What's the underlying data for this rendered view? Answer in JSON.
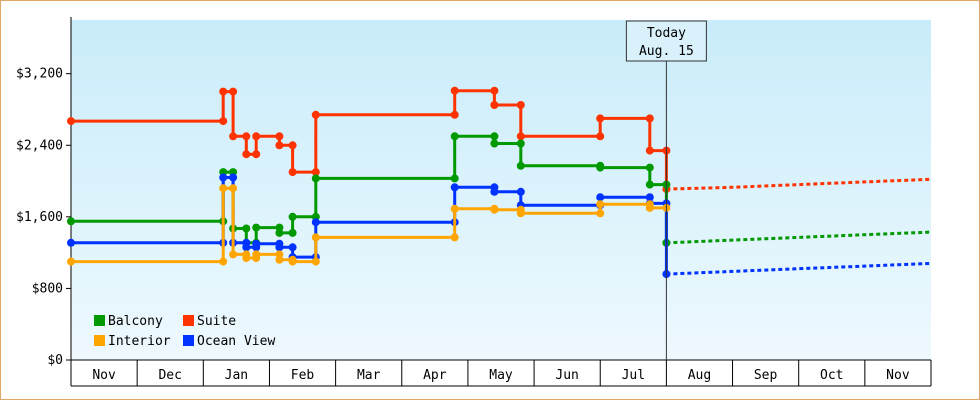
{
  "chart_data": {
    "type": "line",
    "title": "",
    "xlabel": "",
    "ylabel": "",
    "y_ticks": [
      "$0",
      "$800",
      "$1,600",
      "$2,400",
      "$3,200"
    ],
    "ylim": [
      0,
      3800
    ],
    "x_ticks": [
      "Nov",
      "Dec",
      "Jan",
      "Feb",
      "Mar",
      "Apr",
      "May",
      "Jun",
      "Jul",
      "Aug",
      "Sep",
      "Oct",
      "Nov"
    ],
    "today_label_line1": "Today",
    "today_label_line2": "Aug. 15",
    "today_x": 9.0,
    "legend_position": "bottom-left",
    "grid": false,
    "series": [
      {
        "name": "Suite",
        "color": "#ff3300",
        "points": [
          [
            0.0,
            2670
          ],
          [
            2.3,
            2670
          ],
          [
            2.3,
            3000
          ],
          [
            2.45,
            3000
          ],
          [
            2.45,
            2500
          ],
          [
            2.65,
            2500
          ],
          [
            2.65,
            2300
          ],
          [
            2.8,
            2300
          ],
          [
            2.8,
            2500
          ],
          [
            3.15,
            2500
          ],
          [
            3.15,
            2400
          ],
          [
            3.35,
            2400
          ],
          [
            3.35,
            2100
          ],
          [
            3.7,
            2100
          ],
          [
            3.7,
            2740
          ],
          [
            5.8,
            2740
          ],
          [
            5.8,
            3010
          ],
          [
            6.4,
            3010
          ],
          [
            6.4,
            2850
          ],
          [
            6.8,
            2850
          ],
          [
            6.8,
            2500
          ],
          [
            8.0,
            2500
          ],
          [
            8.0,
            2700
          ],
          [
            8.75,
            2700
          ],
          [
            8.75,
            2340
          ],
          [
            9.0,
            2340
          ],
          [
            9.0,
            2340
          ],
          [
            9.0,
            1910
          ],
          [
            9.0,
            1910
          ]
        ],
        "forecast": [
          [
            9.0,
            1910
          ],
          [
            10.0,
            1930
          ],
          [
            11.0,
            1960
          ],
          [
            12.0,
            1990
          ],
          [
            13.0,
            2020
          ]
        ]
      },
      {
        "name": "Balcony",
        "color": "#009900",
        "points": [
          [
            0.0,
            1550
          ],
          [
            2.3,
            1550
          ],
          [
            2.3,
            2100
          ],
          [
            2.45,
            2100
          ],
          [
            2.45,
            1470
          ],
          [
            2.65,
            1470
          ],
          [
            2.65,
            1310
          ],
          [
            2.8,
            1310
          ],
          [
            2.8,
            1480
          ],
          [
            3.15,
            1480
          ],
          [
            3.15,
            1420
          ],
          [
            3.35,
            1420
          ],
          [
            3.35,
            1600
          ],
          [
            3.7,
            1600
          ],
          [
            3.7,
            2030
          ],
          [
            5.8,
            2030
          ],
          [
            5.8,
            2500
          ],
          [
            6.4,
            2500
          ],
          [
            6.4,
            2420
          ],
          [
            6.8,
            2420
          ],
          [
            6.8,
            2170
          ],
          [
            8.0,
            2170
          ],
          [
            8.0,
            2150
          ],
          [
            8.75,
            2150
          ],
          [
            8.75,
            1960
          ],
          [
            9.0,
            1960
          ],
          [
            9.0,
            1310
          ],
          [
            9.0,
            1310
          ]
        ],
        "forecast": [
          [
            9.0,
            1310
          ],
          [
            10.0,
            1340
          ],
          [
            11.0,
            1370
          ],
          [
            12.0,
            1400
          ],
          [
            13.0,
            1430
          ]
        ]
      },
      {
        "name": "Ocean View",
        "color": "#0033ff",
        "points": [
          [
            0.0,
            1310
          ],
          [
            2.3,
            1310
          ],
          [
            2.3,
            2040
          ],
          [
            2.45,
            2040
          ],
          [
            2.45,
            1310
          ],
          [
            2.65,
            1310
          ],
          [
            2.65,
            1260
          ],
          [
            2.8,
            1260
          ],
          [
            2.8,
            1300
          ],
          [
            3.15,
            1300
          ],
          [
            3.15,
            1260
          ],
          [
            3.35,
            1260
          ],
          [
            3.35,
            1150
          ],
          [
            3.7,
            1150
          ],
          [
            3.7,
            1540
          ],
          [
            5.8,
            1540
          ],
          [
            5.8,
            1930
          ],
          [
            6.4,
            1930
          ],
          [
            6.4,
            1880
          ],
          [
            6.8,
            1880
          ],
          [
            6.8,
            1730
          ],
          [
            8.0,
            1730
          ],
          [
            8.0,
            1820
          ],
          [
            8.75,
            1820
          ],
          [
            8.75,
            1750
          ],
          [
            9.0,
            1750
          ],
          [
            9.0,
            960
          ],
          [
            9.0,
            960
          ]
        ],
        "forecast": [
          [
            9.0,
            960
          ],
          [
            10.0,
            990
          ],
          [
            11.0,
            1020
          ],
          [
            12.0,
            1050
          ],
          [
            13.0,
            1080
          ]
        ]
      },
      {
        "name": "Interior",
        "color": "#ffa500",
        "points": [
          [
            0.0,
            1100
          ],
          [
            2.3,
            1100
          ],
          [
            2.3,
            1920
          ],
          [
            2.45,
            1920
          ],
          [
            2.45,
            1180
          ],
          [
            2.65,
            1180
          ],
          [
            2.65,
            1140
          ],
          [
            2.8,
            1140
          ],
          [
            2.8,
            1180
          ],
          [
            3.15,
            1180
          ],
          [
            3.15,
            1120
          ],
          [
            3.35,
            1120
          ],
          [
            3.35,
            1100
          ],
          [
            3.7,
            1100
          ],
          [
            3.7,
            1370
          ],
          [
            5.8,
            1370
          ],
          [
            5.8,
            1690
          ],
          [
            6.4,
            1690
          ],
          [
            6.4,
            1680
          ],
          [
            6.8,
            1680
          ],
          [
            6.8,
            1640
          ],
          [
            8.0,
            1640
          ],
          [
            8.0,
            1740
          ],
          [
            8.75,
            1740
          ],
          [
            8.75,
            1700
          ],
          [
            9.0,
            1700
          ]
        ],
        "forecast": []
      }
    ],
    "legend": [
      {
        "name": "Balcony",
        "color": "#009900"
      },
      {
        "name": "Suite",
        "color": "#ff3300"
      },
      {
        "name": "Interior",
        "color": "#ffa500"
      },
      {
        "name": "Ocean View",
        "color": "#0033ff"
      }
    ]
  }
}
